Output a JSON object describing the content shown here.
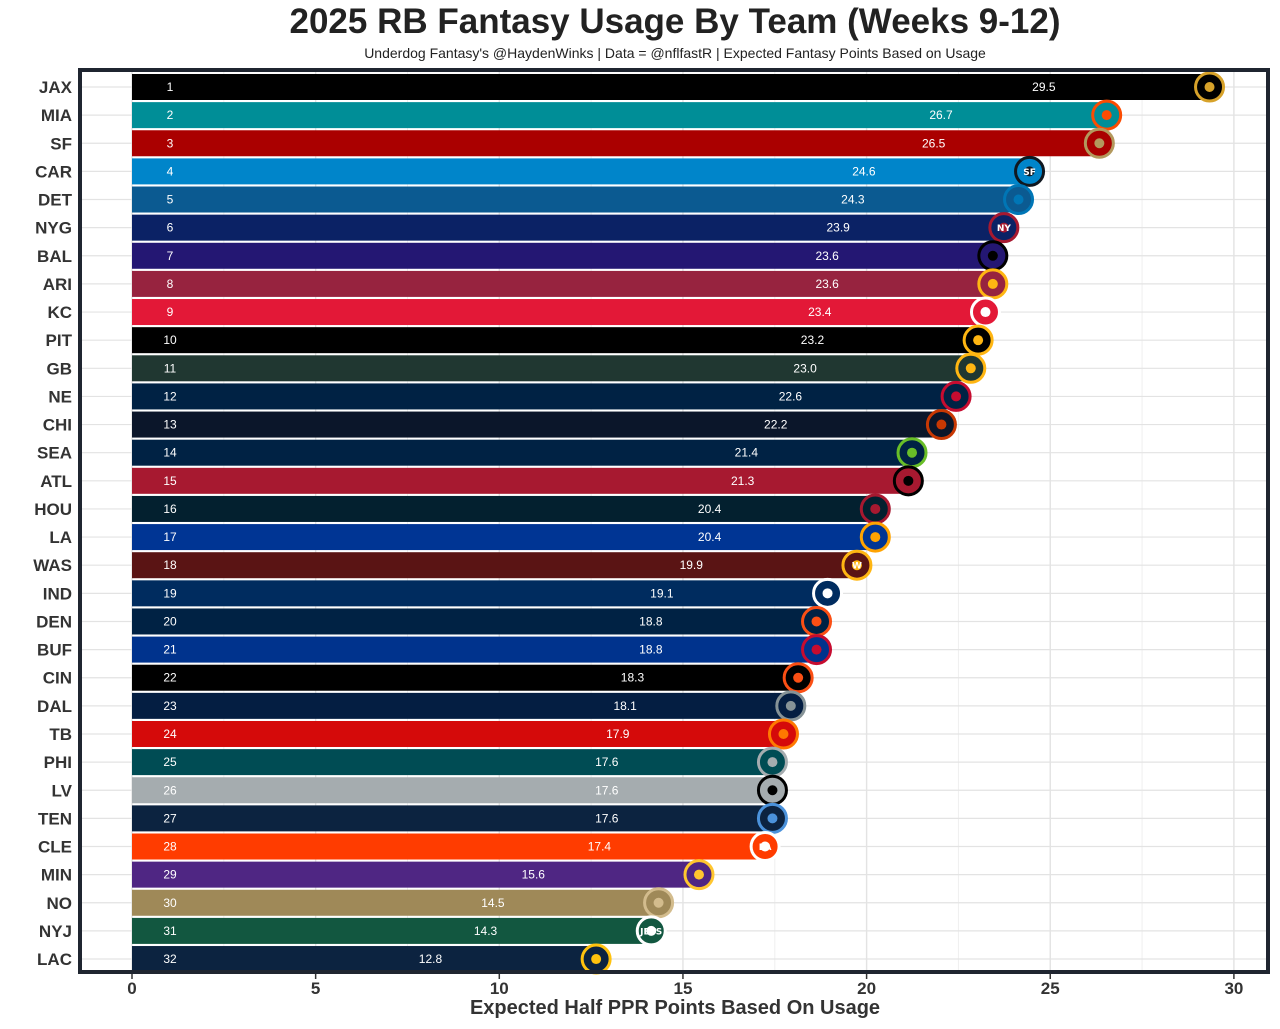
{
  "title": "2025 RB Fantasy Usage By Team (Weeks 9-12)",
  "subtitle": "Underdog Fantasy's @HaydenWinks | Data = @nflfastR | Expected Fantasy Points Based on Usage",
  "chart_data": {
    "type": "bar",
    "orientation": "horizontal",
    "title": "2025 RB Fantasy Usage By Team (Weeks 9-12)",
    "subtitle": "Underdog Fantasy's @HaydenWinks | Data = @nflfastR | Expected Fantasy Points Based on Usage",
    "xlabel": "Expected Half PPR Points Based On Usage",
    "ylabel": "",
    "xlim": [
      0,
      30
    ],
    "xticks": [
      0,
      5,
      10,
      15,
      20,
      25,
      30
    ],
    "grid": true,
    "categories": [
      "JAX",
      "MIA",
      "SF",
      "CAR",
      "DET",
      "NYG",
      "BAL",
      "ARI",
      "KC",
      "PIT",
      "GB",
      "NE",
      "CHI",
      "SEA",
      "ATL",
      "HOU",
      "LA",
      "WAS",
      "IND",
      "DEN",
      "BUF",
      "CIN",
      "DAL",
      "TB",
      "PHI",
      "LV",
      "TEN",
      "CLE",
      "MIN",
      "NO",
      "NYJ",
      "LAC"
    ],
    "ranks": [
      1,
      2,
      3,
      4,
      5,
      6,
      7,
      8,
      9,
      10,
      11,
      12,
      13,
      14,
      15,
      16,
      17,
      18,
      19,
      20,
      21,
      22,
      23,
      24,
      25,
      26,
      27,
      28,
      29,
      30,
      31,
      32
    ],
    "values": [
      29.5,
      26.7,
      26.5,
      24.6,
      24.3,
      23.9,
      23.6,
      23.6,
      23.4,
      23.2,
      23.0,
      22.6,
      22.2,
      21.4,
      21.3,
      20.4,
      20.4,
      19.9,
      19.1,
      18.8,
      18.8,
      18.3,
      18.1,
      17.9,
      17.6,
      17.6,
      17.6,
      17.4,
      15.6,
      14.5,
      14.3,
      12.8
    ],
    "value_labels": [
      "29.5",
      "26.7",
      "26.5",
      "24.6",
      "24.3",
      "23.9",
      "23.6",
      "23.6",
      "23.4",
      "23.2",
      "23.0",
      "22.6",
      "22.2",
      "21.4",
      "21.3",
      "20.4",
      "20.4",
      "19.9",
      "19.1",
      "18.8",
      "18.8",
      "18.3",
      "18.1",
      "17.9",
      "17.6",
      "17.6",
      "17.6",
      "17.4",
      "15.6",
      "14.5",
      "14.3",
      "12.8"
    ],
    "bar_colors": [
      "#000000",
      "#008E97",
      "#AA0000",
      "#0085CA",
      "#0B5A91",
      "#0B2265",
      "#241773",
      "#97233F",
      "#E31837",
      "#000000",
      "#203731",
      "#002244",
      "#0B162A",
      "#002244",
      "#A71930",
      "#03202F",
      "#003594",
      "#5A1414",
      "#002C5F",
      "#002244",
      "#00338D",
      "#000000",
      "#041E42",
      "#D50A0A",
      "#004C54",
      "#A5ACAF",
      "#0C2340",
      "#FF3C00",
      "#4F2683",
      "#9F8958",
      "#125740",
      "#0C2340"
    ],
    "logo_icons": [
      "jaguars-icon",
      "dolphins-icon",
      "49ers-icon",
      "panthers-icon",
      "lions-icon",
      "giants-icon",
      "ravens-icon",
      "cardinals-icon",
      "chiefs-icon",
      "steelers-icon",
      "packers-icon",
      "patriots-icon",
      "bears-icon",
      "seahawks-icon",
      "falcons-icon",
      "texans-icon",
      "rams-icon",
      "commanders-icon",
      "colts-icon",
      "broncos-icon",
      "bills-icon",
      "bengals-icon",
      "cowboys-icon",
      "buccaneers-icon",
      "eagles-icon",
      "raiders-icon",
      "titans-icon",
      "browns-icon",
      "vikings-icon",
      "saints-icon",
      "jets-icon",
      "chargers-icon"
    ],
    "logo_colors": [
      "#D7A22A",
      "#FC4C02",
      "#B3995D",
      "#101820",
      "#0076B6",
      "#A71930",
      "#000000",
      "#FFB612",
      "#FFFFFF",
      "#FFB612",
      "#FFB612",
      "#C60C30",
      "#C83803",
      "#69BE28",
      "#000000",
      "#A71930",
      "#FFA300",
      "#FFB612",
      "#FFFFFF",
      "#FB4F14",
      "#C60C30",
      "#FB4F14",
      "#869397",
      "#FF7900",
      "#A5ACAF",
      "#000000",
      "#4B92DB",
      "#FFFFFF",
      "#FFC62F",
      "#D3BC8D",
      "#FFFFFF",
      "#FFC20E"
    ],
    "logo_labels": {
      "logo_4": "SF",
      "logo_6": "NY",
      "logo_18": "W",
      "logo_28": "LA",
      "logo_31": "JETS"
    }
  }
}
